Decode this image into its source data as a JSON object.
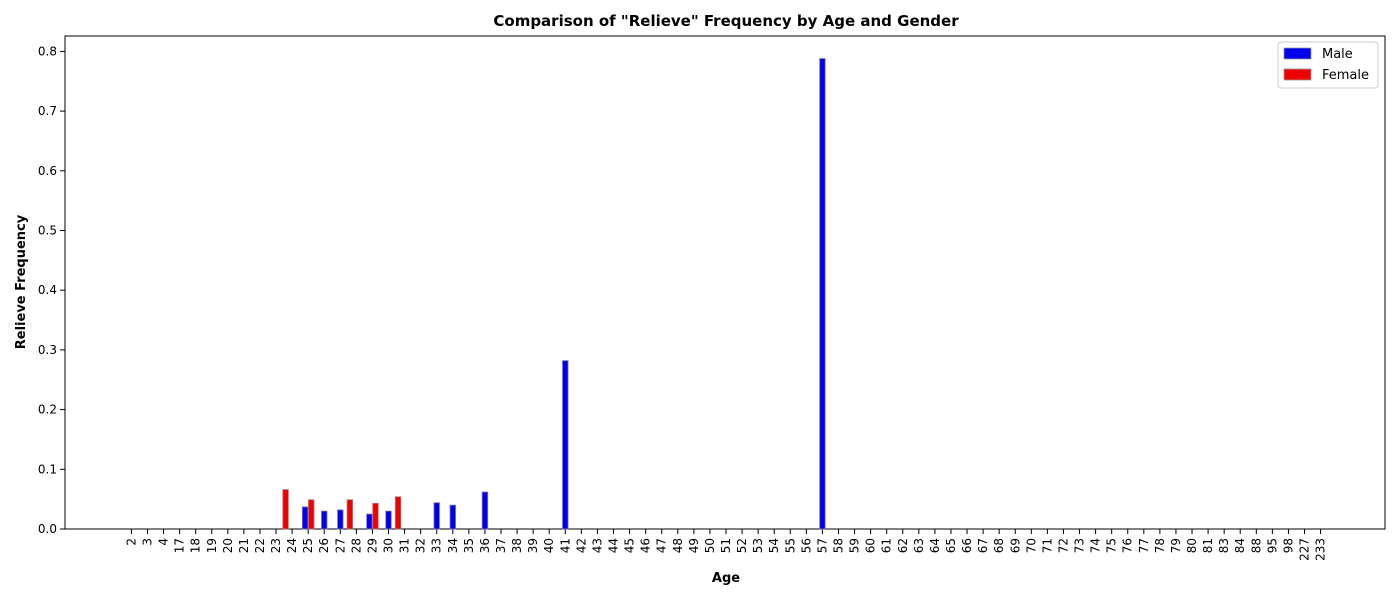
{
  "chart_data": {
    "type": "bar",
    "title": "Comparison of \"Relieve\" Frequency by Age and Gender",
    "xlabel": "Age",
    "ylabel": "Relieve Frequency",
    "ylim": [
      0,
      0.83
    ],
    "yticks": [
      0.0,
      0.1,
      0.2,
      0.3,
      0.4,
      0.5,
      0.6,
      0.7,
      0.8
    ],
    "ytick_labels": [
      "0.0",
      "0.1",
      "0.2",
      "0.3",
      "0.4",
      "0.5",
      "0.6",
      "0.7",
      "0.8"
    ],
    "grid": false,
    "legend_position": "top-right",
    "categories": [
      "2",
      "3",
      "4",
      "17",
      "18",
      "19",
      "20",
      "21",
      "22",
      "23",
      "24",
      "25",
      "26",
      "27",
      "28",
      "29",
      "30",
      "31",
      "32",
      "33",
      "34",
      "35",
      "36",
      "37",
      "38",
      "39",
      "40",
      "41",
      "42",
      "43",
      "44",
      "45",
      "46",
      "47",
      "48",
      "49",
      "50",
      "51",
      "52",
      "53",
      "54",
      "55",
      "56",
      "57",
      "58",
      "59",
      "60",
      "61",
      "62",
      "63",
      "64",
      "65",
      "66",
      "67",
      "68",
      "69",
      "70",
      "71",
      "72",
      "73",
      "74",
      "75",
      "76",
      "77",
      "78",
      "79",
      "80",
      "81",
      "83",
      "84",
      "88",
      "95",
      "98",
      "227",
      "233"
    ],
    "series": [
      {
        "name": "Male",
        "color": "#0000ee",
        "values": [
          0,
          0,
          0,
          0,
          0,
          0,
          0,
          0,
          0,
          0,
          0,
          0.037,
          0.03,
          0.032,
          0,
          0.025,
          0.03,
          0,
          0,
          0.044,
          0.04,
          0,
          0.062,
          0,
          0,
          0,
          0,
          0.282,
          0,
          0,
          0,
          0,
          0,
          0,
          0,
          0,
          0,
          0,
          0,
          0,
          0,
          0,
          0,
          0.788,
          0,
          0,
          0,
          0,
          0,
          0,
          0,
          0,
          0,
          0,
          0,
          0,
          0,
          0,
          0,
          0,
          0,
          0,
          0,
          0,
          0,
          0,
          0,
          0,
          0,
          0,
          0,
          0,
          0,
          0,
          0
        ]
      },
      {
        "name": "Female",
        "color": "#ee0000",
        "values": [
          0,
          0,
          0,
          0,
          0,
          0,
          0,
          0,
          0,
          0,
          0.066,
          0.049,
          0,
          0,
          0.049,
          0.043,
          0,
          0.054,
          0,
          0,
          0,
          0,
          0,
          0,
          0,
          0,
          0,
          0,
          0,
          0,
          0,
          0,
          0,
          0,
          0,
          0,
          0,
          0,
          0,
          0,
          0,
          0,
          0,
          0,
          0,
          0,
          0,
          0,
          0,
          0,
          0,
          0,
          0,
          0,
          0,
          0,
          0,
          0,
          0,
          0,
          0,
          0,
          0,
          0,
          0,
          0,
          0,
          0,
          0,
          0,
          0,
          0,
          0,
          0,
          0
        ]
      }
    ]
  }
}
